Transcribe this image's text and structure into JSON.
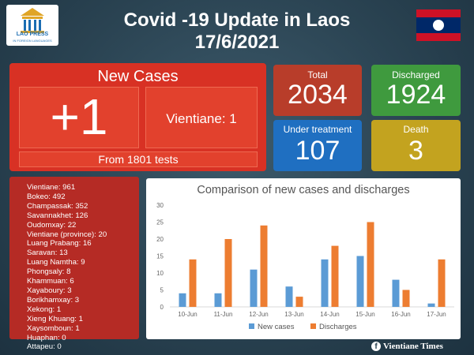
{
  "header": {
    "title": "Covid -19 Update in Laos",
    "date": "17/6/2021",
    "logo_line1": "LAO PRESS",
    "logo_line2": "IN FOREIGN LANGUAGES"
  },
  "new_cases": {
    "heading": "New Cases",
    "count": "+1",
    "location": "Vientiane: 1",
    "tests": "From 1801 tests"
  },
  "stats": {
    "total": {
      "label": "Total",
      "value": "2034"
    },
    "discharged": {
      "label": "Discharged",
      "value": "1924"
    },
    "under_treatment": {
      "label": "Under treatment",
      "value": "107"
    },
    "death": {
      "label": "Death",
      "value": "3"
    }
  },
  "provinces": [
    "Vientiane: 961",
    "Bokeo: 492",
    "Champassak: 352",
    "Savannakhet: 126",
    "Oudomxay: 22",
    "Vientiane (province): 20",
    "Luang Prabang: 16",
    "Saravan: 13",
    "Luang Namtha: 9",
    "Phongsaly: 8",
    "Khammuan: 6",
    "Xayaboury: 3",
    "Borikhamxay: 3",
    "Xekong: 1",
    "Xieng Khuang: 1",
    "Xaysomboun: 1",
    "Huaphan: 0",
    "Attapeu: 0"
  ],
  "chart_data": {
    "type": "bar",
    "title": "Comparison of new cases and discharges",
    "categories": [
      "10-Jun",
      "11-Jun",
      "12-Jun",
      "13-Jun",
      "14-Jun",
      "15-Jun",
      "16-Jun",
      "17-Jun"
    ],
    "series": [
      {
        "name": "New cases",
        "color": "#5b9bd5",
        "values": [
          4,
          4,
          11,
          6,
          14,
          15,
          8,
          1
        ]
      },
      {
        "name": "Discharges",
        "color": "#ed7d31",
        "values": [
          14,
          20,
          24,
          3,
          18,
          25,
          5,
          14
        ]
      }
    ],
    "ylim": [
      0,
      30
    ],
    "yticks": [
      0,
      5,
      10,
      15,
      20,
      25,
      30
    ],
    "legend": "bottom",
    "grid": false
  },
  "colors": {
    "background": "#2a4352",
    "new_cases_panel": "#d83124",
    "total": "#b83d2a",
    "discharged": "#3f9a3e",
    "under_treatment": "#1f6fc1",
    "death": "#c3a31f"
  },
  "footer": {
    "icon": "facebook-icon",
    "text": "Vientiane Times"
  }
}
